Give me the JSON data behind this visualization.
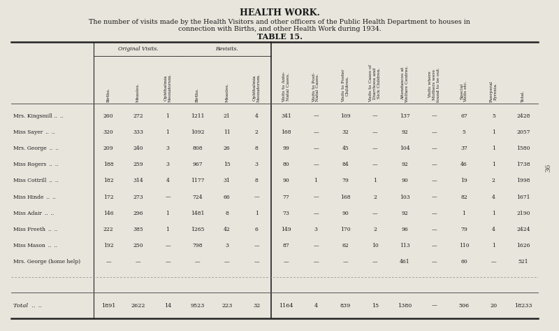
{
  "title": "HEALTH WORK.",
  "subtitle1": "The number of visits made by the Health Visitors and other officers of the Public Health Department to houses in",
  "subtitle2": "connection with Births, and other Health Work during 1934.",
  "table_title": "TABLE 15.",
  "bg_color": "#e8e5dc",
  "col_headers": [
    "Births.",
    "Measles.",
    "Ophthalmia\nNeonatorum.",
    "Births.",
    "Measles.",
    "Ophthalmia\nNeonatorum.",
    "Visits to Ante-\nNatal Cases.",
    "Visits to Post-\nNatal Cases.",
    "Visits to Foster\nChildren.",
    "Visits to Cases of\nDiarrhoea and\nSick Children.",
    "Attendances at\nWelfare Centres.",
    "Visits where\nMothers were\nfound to be out.",
    "Special\nVisits etc.",
    "Puerperal\nPyrexia.",
    "Total."
  ],
  "row_names": [
    "Mrs. Kingsmill .. ..",
    "Miss Sayer .. ..",
    "Mrs. George .. ..",
    "Miss Rogers .. ..",
    "Miss Cottrill .. ..",
    "Miss Hinde .. ..",
    "Miss Adair .. ..",
    "Miss Freeth .. ..",
    "Miss Mason .. ..",
    "Mrs. George (home help)"
  ],
  "row_data": [
    [
      "260",
      "272",
      "1",
      "1211",
      "21",
      "4",
      "341",
      "—",
      "109",
      "—",
      "137",
      "—",
      "67",
      "5",
      "2428"
    ],
    [
      "320",
      "333",
      "1",
      "1092",
      "11",
      "2",
      "168",
      "—",
      "32",
      "—",
      "92",
      "—",
      "5",
      "1",
      "2057"
    ],
    [
      "209",
      "240",
      "3",
      "808",
      "26",
      "8",
      "99",
      "—",
      "45",
      "—",
      "104",
      "—",
      "37",
      "1",
      "1580"
    ],
    [
      "188",
      "259",
      "3",
      "967",
      "15",
      "3",
      "80",
      "—",
      "84",
      "—",
      "92",
      "—",
      "46",
      "1",
      "1738"
    ],
    [
      "182",
      "314",
      "4",
      "1177",
      "31",
      "8",
      "90",
      "1",
      "79",
      "1",
      "90",
      "—",
      "19",
      "2",
      "1998"
    ],
    [
      "172",
      "273",
      "—",
      "724",
      "66",
      "—",
      "77",
      "—",
      "168",
      "2",
      "103",
      "—",
      "82",
      "4",
      "1671"
    ],
    [
      "146",
      "296",
      "1",
      "1481",
      "8",
      "1",
      "73",
      "—",
      "90",
      "—",
      "92",
      "—",
      "1",
      "1",
      "2190"
    ],
    [
      "222",
      "385",
      "1",
      "1265",
      "42",
      "6",
      "149",
      "3",
      "170",
      "2",
      "96",
      "—",
      "79",
      "4",
      "2424"
    ],
    [
      "192",
      "250",
      "—",
      "798",
      "3",
      "—",
      "87",
      "—",
      "62",
      "10",
      "113",
      "—",
      "110",
      "1",
      "1626"
    ],
    [
      "—",
      "—",
      "—",
      "—",
      "—",
      "—",
      "—",
      "—",
      "—",
      "—",
      "461",
      "—",
      "60",
      "—",
      "521"
    ]
  ],
  "total_row": [
    "1891",
    "2622",
    "14",
    "9523",
    "223",
    "32",
    "1164",
    "4",
    "839",
    "15",
    "1380",
    "—",
    "506",
    "20",
    "18233"
  ],
  "side_number": "36"
}
